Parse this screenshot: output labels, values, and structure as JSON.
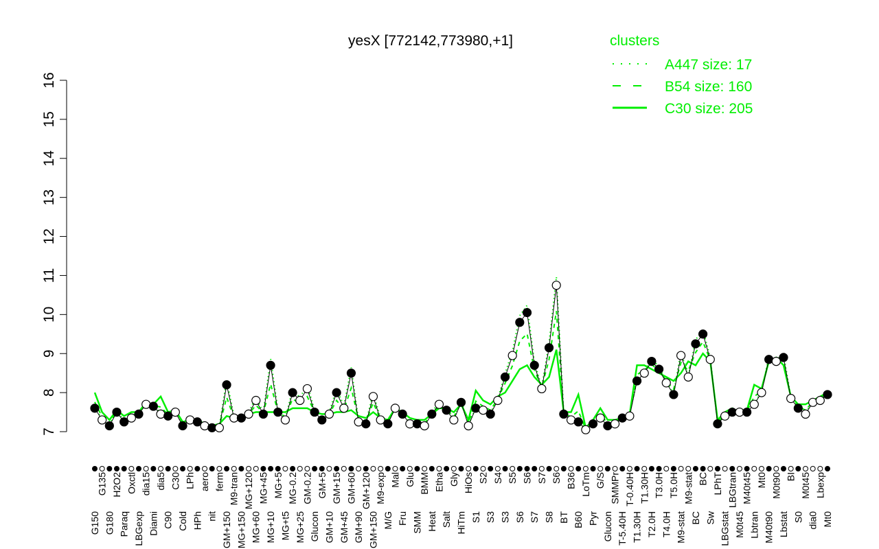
{
  "chart_data": {
    "type": "line",
    "title": "yesX [772142,773980,+1]",
    "ylim": [
      7,
      16
    ],
    "yticks": [
      7,
      8,
      9,
      10,
      11,
      12,
      13,
      14,
      15,
      16
    ],
    "grid": false,
    "legend": {
      "title": "clusters",
      "placement": "top-right",
      "entries": [
        {
          "label": "A447 size: 17",
          "style": "dotted"
        },
        {
          "label": "B54 size: 160",
          "style": "dashed"
        },
        {
          "label": "C30 size: 205",
          "style": "solid"
        }
      ]
    },
    "colors": {
      "series": "#00ee00",
      "legend_text": "#00ee00",
      "points": "#000000"
    },
    "points": [
      {
        "label": "G150",
        "value": 7.6,
        "filled": true,
        "c30": 8.0
      },
      {
        "label": "G135",
        "value": 7.3,
        "filled": false,
        "c30": 7.5
      },
      {
        "label": "G180",
        "value": 7.15,
        "filled": true,
        "c30": 7.3
      },
      {
        "label": "H2O2",
        "value": 7.5,
        "filled": true,
        "c30": 7.55
      },
      {
        "label": "Paraq",
        "value": 7.25,
        "filled": true,
        "c30": 7.4
      },
      {
        "label": "Oxctl",
        "value": 7.35,
        "filled": false,
        "c30": 7.5
      },
      {
        "label": "LBGexp",
        "value": 7.45,
        "filled": true,
        "c30": 7.5
      },
      {
        "label": "dia15",
        "value": 7.7,
        "filled": false,
        "c30": 7.75
      },
      {
        "label": "Diami",
        "value": 7.65,
        "filled": true,
        "c30": 7.7
      },
      {
        "label": "dia5",
        "value": 7.45,
        "filled": false,
        "c30": 7.9
      },
      {
        "label": "C90",
        "value": 7.4,
        "filled": true,
        "c30": 7.5
      },
      {
        "label": "C30",
        "value": 7.5,
        "filled": false,
        "c30": 7.55
      },
      {
        "label": "Cold",
        "value": 7.15,
        "filled": true,
        "c30": 7.25
      },
      {
        "label": "LPh",
        "value": 7.3,
        "filled": false,
        "c30": 7.3
      },
      {
        "label": "HPh",
        "value": 7.25,
        "filled": true,
        "c30": 7.3
      },
      {
        "label": "aero",
        "value": 7.15,
        "filled": false,
        "c30": 7.2
      },
      {
        "label": "nit",
        "value": 7.1,
        "filled": true,
        "c30": 7.15
      },
      {
        "label": "ferm",
        "value": 7.1,
        "filled": false,
        "c30": 7.2
      },
      {
        "label": "GM+150",
        "value": 8.2,
        "filled": true,
        "c30": 7.4
      },
      {
        "label": "M9-tran",
        "value": 7.35,
        "filled": false,
        "c30": 7.35
      },
      {
        "label": "MG+150",
        "value": 7.35,
        "filled": true,
        "c30": 7.4
      },
      {
        "label": "MG+120",
        "value": 7.45,
        "filled": false,
        "c30": 7.45
      },
      {
        "label": "MG+60",
        "value": 7.8,
        "filled": false,
        "c30": 7.5
      },
      {
        "label": "MG+45",
        "value": 7.45,
        "filled": true,
        "c30": 7.5
      },
      {
        "label": "MG+10",
        "value": 8.7,
        "filled": true,
        "c30": 7.5
      },
      {
        "label": "MG+5",
        "value": 7.5,
        "filled": true,
        "c30": 7.5
      },
      {
        "label": "MG+t5",
        "value": 7.3,
        "filled": false,
        "c30": 7.5
      },
      {
        "label": "MG-0.2",
        "value": 8.0,
        "filled": true,
        "c30": 7.6
      },
      {
        "label": "MG+25",
        "value": 7.8,
        "filled": false,
        "c30": 7.6
      },
      {
        "label": "GM-0.2",
        "value": 8.1,
        "filled": false,
        "c30": 7.6
      },
      {
        "label": "Glucon",
        "value": 7.5,
        "filled": true,
        "c30": 7.5
      },
      {
        "label": "GM+5",
        "value": 7.3,
        "filled": true,
        "c30": 7.45
      },
      {
        "label": "GM+10",
        "value": 7.45,
        "filled": false,
        "c30": 7.45
      },
      {
        "label": "GM+15",
        "value": 8.0,
        "filled": true,
        "c30": 7.5
      },
      {
        "label": "GM+45",
        "value": 7.6,
        "filled": false,
        "c30": 7.5
      },
      {
        "label": "GM+60",
        "value": 8.5,
        "filled": true,
        "c30": 7.55
      },
      {
        "label": "GM+90",
        "value": 7.25,
        "filled": false,
        "c30": 7.4
      },
      {
        "label": "GM+120",
        "value": 7.2,
        "filled": true,
        "c30": 7.35
      },
      {
        "label": "GM+150",
        "value": 7.9,
        "filled": false,
        "c30": 7.5
      },
      {
        "label": "M9-exp",
        "value": 7.3,
        "filled": false,
        "c30": 7.35
      },
      {
        "label": "M/G",
        "value": 7.2,
        "filled": true,
        "c30": 7.3
      },
      {
        "label": "Mal",
        "value": 7.6,
        "filled": false,
        "c30": 7.6
      },
      {
        "label": "Fru",
        "value": 7.45,
        "filled": true,
        "c30": 7.5
      },
      {
        "label": "Glu",
        "value": 7.2,
        "filled": false,
        "c30": 7.35
      },
      {
        "label": "SMM",
        "value": 7.2,
        "filled": true,
        "c30": 7.3
      },
      {
        "label": "BMM",
        "value": 7.15,
        "filled": false,
        "c30": 7.3
      },
      {
        "label": "Heat",
        "value": 7.45,
        "filled": true,
        "c30": 7.45
      },
      {
        "label": "Etha",
        "value": 7.7,
        "filled": false,
        "c30": 7.6
      },
      {
        "label": "Salt",
        "value": 7.55,
        "filled": true,
        "c30": 7.6
      },
      {
        "label": "Gly",
        "value": 7.3,
        "filled": false,
        "c30": 7.5
      },
      {
        "label": "HiTm",
        "value": 7.75,
        "filled": true,
        "c30": 7.7
      },
      {
        "label": "HiOs",
        "value": 7.15,
        "filled": false,
        "c30": 7.3
      },
      {
        "label": "S1",
        "value": 7.6,
        "filled": true,
        "c30": 8.05
      },
      {
        "label": "S2",
        "value": 7.55,
        "filled": false,
        "c30": 7.8
      },
      {
        "label": "S3",
        "value": 7.45,
        "filled": true,
        "c30": 7.7
      },
      {
        "label": "S4",
        "value": 7.8,
        "filled": false,
        "c30": 7.9
      },
      {
        "label": "S3",
        "value": 8.4,
        "filled": true,
        "c30": 8.0
      },
      {
        "label": "S5",
        "value": 8.95,
        "filled": false,
        "c30": 8.3
      },
      {
        "label": "S6",
        "value": 9.8,
        "filled": true,
        "c30": 8.6
      },
      {
        "label": "S6",
        "value": 10.05,
        "filled": true,
        "c30": 8.7
      },
      {
        "label": "S7",
        "value": 8.7,
        "filled": true,
        "c30": 8.4
      },
      {
        "label": "S7",
        "value": 8.1,
        "filled": false,
        "c30": 8.2
      },
      {
        "label": "S8",
        "value": 9.15,
        "filled": true,
        "c30": 8.4
      },
      {
        "label": "S6",
        "value": 10.75,
        "filled": false,
        "c30": 9.1
      },
      {
        "label": "BT",
        "value": 7.45,
        "filled": true,
        "c30": 7.5
      },
      {
        "label": "B36",
        "value": 7.3,
        "filled": false,
        "c30": 7.5
      },
      {
        "label": "B60",
        "value": 7.25,
        "filled": true,
        "c30": 7.95
      },
      {
        "label": "LoTm",
        "value": 7.05,
        "filled": false,
        "c30": 7.1
      },
      {
        "label": "Pyr",
        "value": 7.2,
        "filled": true,
        "c30": 7.3
      },
      {
        "label": "G/S",
        "value": 7.35,
        "filled": false,
        "c30": 7.6
      },
      {
        "label": "Glucon",
        "value": 7.15,
        "filled": true,
        "c30": 7.3
      },
      {
        "label": "SMMPr",
        "value": 7.2,
        "filled": false,
        "c30": 7.3
      },
      {
        "label": "T-5.40H",
        "value": 7.35,
        "filled": true,
        "c30": 7.35
      },
      {
        "label": "T-0.40H",
        "value": 7.4,
        "filled": false,
        "c30": 7.45
      },
      {
        "label": "T1.30H",
        "value": 8.3,
        "filled": true,
        "c30": 8.7
      },
      {
        "label": "T1.30H",
        "value": 8.5,
        "filled": false,
        "c30": 8.7
      },
      {
        "label": "T2.0H",
        "value": 8.8,
        "filled": true,
        "c30": 8.6
      },
      {
        "label": "T3.0H",
        "value": 8.6,
        "filled": true,
        "c30": 8.5
      },
      {
        "label": "T4.0H",
        "value": 8.25,
        "filled": false,
        "c30": 8.4
      },
      {
        "label": "T5.0H",
        "value": 7.95,
        "filled": true,
        "c30": 8.3
      },
      {
        "label": "M9-stat",
        "value": 8.95,
        "filled": false,
        "c30": 8.5
      },
      {
        "label": "M9-stat",
        "value": 8.4,
        "filled": false,
        "c30": 8.8
      },
      {
        "label": "BC",
        "value": 9.25,
        "filled": true,
        "c30": 8.7
      },
      {
        "label": "BC",
        "value": 9.5,
        "filled": true,
        "c30": 9.0
      },
      {
        "label": "Sw",
        "value": 8.85,
        "filled": false,
        "c30": 8.8
      },
      {
        "label": "LPhT",
        "value": 7.2,
        "filled": true,
        "c30": 7.3
      },
      {
        "label": "LBGstat",
        "value": 7.4,
        "filled": false,
        "c30": 7.5
      },
      {
        "label": "LBGtran",
        "value": 7.5,
        "filled": true,
        "c30": 7.6
      },
      {
        "label": "M0t45",
        "value": 7.5,
        "filled": false,
        "c30": 7.5
      },
      {
        "label": "M40t45",
        "value": 7.5,
        "filled": true,
        "c30": 7.55
      },
      {
        "label": "Lbtran",
        "value": 7.7,
        "filled": false,
        "c30": 8.2
      },
      {
        "label": "Mt0",
        "value": 8.0,
        "filled": false,
        "c30": 8.1
      },
      {
        "label": "M40t90",
        "value": 8.85,
        "filled": true,
        "c30": 8.8
      },
      {
        "label": "M0t90",
        "value": 8.8,
        "filled": false,
        "c30": 8.9
      },
      {
        "label": "Lbstat",
        "value": 8.9,
        "filled": true,
        "c30": 8.7
      },
      {
        "label": "BI",
        "value": 7.85,
        "filled": false,
        "c30": 7.9
      },
      {
        "label": "S0",
        "value": 7.6,
        "filled": true,
        "c30": 7.7
      },
      {
        "label": "M0t45",
        "value": 7.45,
        "filled": false,
        "c30": 7.7
      },
      {
        "label": "dia0",
        "value": 7.75,
        "filled": false,
        "c30": 7.8
      },
      {
        "label": "Lbexp",
        "value": 7.8,
        "filled": false,
        "c30": 7.9
      },
      {
        "label": "Mt0",
        "value": 7.95,
        "filled": true,
        "c30": 8.0
      }
    ]
  }
}
